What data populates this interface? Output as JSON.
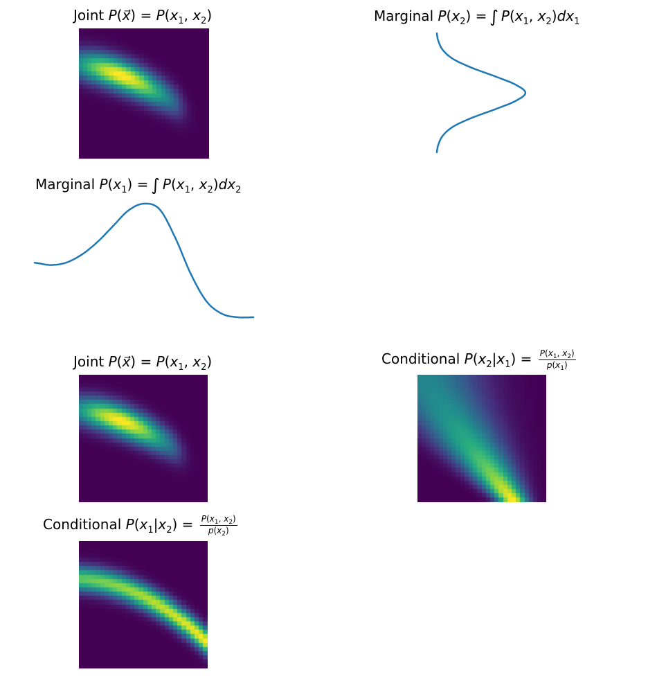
{
  "panels": {
    "joint_top": {
      "title_prefix": "Joint",
      "expr": "P(x⃗) = P(x₁, x₂)"
    },
    "marginal_x2": {
      "title_prefix": "Marginal",
      "expr": "P(x₂) = ∫ P(x₁, x₂)dx₁"
    },
    "marginal_x1": {
      "title_prefix": "Marginal",
      "expr": "P(x₁) = ∫ P(x₁, x₂)dx₂"
    },
    "joint_bottom": {
      "title_prefix": "Joint",
      "expr": "P(x⃗) = P(x₁, x₂)"
    },
    "cond_x2_given_x1": {
      "title_prefix": "Conditional",
      "expr": "P(x₂|x₁) = P(x₁, x₂) / p(x₁)"
    },
    "cond_x1_given_x2": {
      "title_prefix": "Conditional",
      "expr": "P(x₁|x₂) = P(x₁, x₂) / p(x₂)"
    }
  },
  "colors": {
    "line": "#1f77b4",
    "colormap": "viridis"
  },
  "chart_data": [
    {
      "type": "heatmap",
      "title": "Joint P(x⃗) = P(x₁, x₂)",
      "grid": false,
      "axes": "off"
    },
    {
      "type": "line",
      "title": "Marginal P(x₂) = ∫ P(x₁, x₂)dx₁",
      "orientation": "vertical",
      "grid": false,
      "axes": "off",
      "y": [
        0.0,
        0.02,
        0.07,
        0.18,
        0.38,
        0.64,
        0.88,
        1.0,
        0.88,
        0.64,
        0.38,
        0.18,
        0.07,
        0.02,
        0.0
      ]
    },
    {
      "type": "line",
      "title": "Marginal P(x₁) = ∫ P(x₁, x₂)dx₂",
      "grid": false,
      "axes": "off",
      "y": [
        0.48,
        0.46,
        0.48,
        0.55,
        0.66,
        0.8,
        0.94,
        1.0,
        0.95,
        0.7,
        0.38,
        0.14,
        0.03,
        0.0,
        0.0
      ]
    },
    {
      "type": "heatmap",
      "title": "Joint P(x⃗) = P(x₁, x₂)",
      "grid": false,
      "axes": "off"
    },
    {
      "type": "heatmap",
      "title": "Conditional P(x₂|x₁) = P(x₁, x₂) / p(x₁)",
      "grid": false,
      "axes": "off"
    },
    {
      "type": "heatmap",
      "title": "Conditional P(x₁|x₂) = P(x₁, x₂) / p(x₂)",
      "grid": false,
      "axes": "off"
    }
  ]
}
